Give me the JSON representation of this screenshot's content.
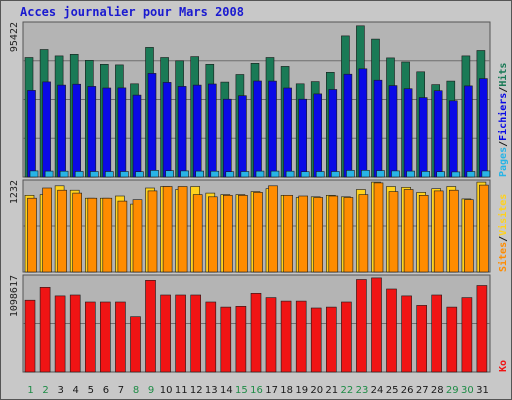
{
  "title": "Acces journalier pour Mars 2008",
  "colors": {
    "background": "#c8c8c8",
    "plot_background": "#b4b4b4",
    "grid": "#6e6e6e",
    "hits": "#1a7a56",
    "files": "#0a0ae6",
    "pages": "#28b4e6",
    "visits": "#ffd21e",
    "sites": "#ff8c00",
    "kbytes": "#f01414",
    "weekday_label": "#1a1a1a",
    "weekend_label": "#1e8c46"
  },
  "chart_data": [
    {
      "type": "bar",
      "panel": "top",
      "max_label": "95422",
      "ylim": [
        0,
        95422
      ],
      "legend": [
        {
          "name": "Pages",
          "color_key": "pages"
        },
        {
          "name": "Fichiers",
          "color_key": "files"
        },
        {
          "name": "Hits",
          "color_key": "hits"
        }
      ],
      "categories": [
        "1",
        "2",
        "3",
        "4",
        "5",
        "6",
        "7",
        "8",
        "9",
        "10",
        "11",
        "12",
        "13",
        "14",
        "15",
        "16",
        "17",
        "18",
        "19",
        "20",
        "21",
        "22",
        "23",
        "24",
        "25",
        "26",
        "27",
        "28",
        "29",
        "30",
        "31"
      ],
      "series": [
        {
          "name": "Hits",
          "color_key": "hits",
          "values": [
            74500,
            79500,
            75500,
            76500,
            72800,
            70300,
            69900,
            58100,
            80800,
            74500,
            72500,
            75100,
            70300,
            59200,
            63900,
            70900,
            74500,
            69000,
            58100,
            59500,
            65300,
            88000,
            94300,
            86000,
            74300,
            71700,
            65600,
            57600,
            59800,
            75500,
            78900
          ]
        },
        {
          "name": "Fichiers",
          "color_key": "files",
          "values": [
            54000,
            59300,
            57300,
            57900,
            56500,
            55500,
            55600,
            51100,
            64600,
            59000,
            56500,
            57300,
            58000,
            48500,
            50700,
            59900,
            59800,
            55500,
            48500,
            51800,
            54600,
            64100,
            67500,
            60400,
            57000,
            55100,
            49500,
            53800,
            47500,
            56800,
            61400
          ]
        },
        {
          "name": "Pages",
          "color_key": "pages",
          "values": [
            3800,
            3700,
            3600,
            3500,
            3400,
            3400,
            3400,
            3300,
            4100,
            3900,
            3800,
            3700,
            3600,
            3300,
            3400,
            3700,
            3700,
            3600,
            3300,
            3400,
            3400,
            4100,
            4200,
            4000,
            3800,
            3700,
            3500,
            3300,
            3200,
            3400,
            3800
          ]
        }
      ]
    },
    {
      "type": "bar",
      "panel": "middle",
      "max_label": "1232",
      "ylim": [
        0,
        1232
      ],
      "legend": [
        {
          "name": "Sites",
          "color_key": "sites"
        },
        {
          "name": "Visites",
          "color_key": "visits"
        }
      ],
      "categories": [
        "1",
        "2",
        "3",
        "4",
        "5",
        "6",
        "7",
        "8",
        "9",
        "10",
        "11",
        "12",
        "13",
        "14",
        "15",
        "16",
        "17",
        "18",
        "19",
        "20",
        "21",
        "22",
        "23",
        "24",
        "25",
        "26",
        "27",
        "28",
        "29",
        "30",
        "31"
      ],
      "series": [
        {
          "name": "Visites",
          "color_key": "visits",
          "values": [
            1050,
            1060,
            1180,
            1120,
            1010,
            1010,
            1040,
            930,
            1150,
            1170,
            1130,
            1170,
            1080,
            1060,
            1060,
            1100,
            1140,
            1050,
            1020,
            1030,
            1050,
            1030,
            1130,
            1230,
            1170,
            1160,
            1090,
            1140,
            1170,
            1000,
            1230
          ]
        },
        {
          "name": "Sites",
          "color_key": "sites",
          "values": [
            1010,
            1150,
            1120,
            1080,
            1010,
            1010,
            970,
            990,
            1110,
            1170,
            1170,
            1060,
            1030,
            1050,
            1050,
            1090,
            1180,
            1050,
            1040,
            1020,
            1040,
            1020,
            1060,
            1220,
            1100,
            1130,
            1050,
            1110,
            1120,
            990,
            1190
          ]
        }
      ]
    },
    {
      "type": "bar",
      "panel": "bottom",
      "max_label": "1098617",
      "ylim": [
        0,
        1098617
      ],
      "legend": [
        {
          "name": "Ko",
          "color_key": "kbytes"
        }
      ],
      "categories": [
        "1",
        "2",
        "3",
        "4",
        "5",
        "6",
        "7",
        "8",
        "9",
        "10",
        "11",
        "12",
        "13",
        "14",
        "15",
        "16",
        "17",
        "18",
        "19",
        "20",
        "21",
        "22",
        "23",
        "24",
        "25",
        "26",
        "27",
        "28",
        "29",
        "30",
        "31"
      ],
      "series": [
        {
          "name": "Ko",
          "color_key": "kbytes",
          "values": [
            830000,
            980000,
            880000,
            890000,
            810000,
            810000,
            810000,
            640000,
            1060000,
            890000,
            890000,
            890000,
            810000,
            750000,
            760000,
            910000,
            860000,
            820000,
            820000,
            740000,
            750000,
            810000,
            1070000,
            1088000,
            960000,
            880000,
            770000,
            890000,
            750000,
            860000,
            1000000
          ]
        }
      ]
    }
  ],
  "x_labels": [
    {
      "label": "1",
      "weekend": true
    },
    {
      "label": "2",
      "weekend": true
    },
    {
      "label": "3",
      "weekend": false
    },
    {
      "label": "4",
      "weekend": false
    },
    {
      "label": "5",
      "weekend": false
    },
    {
      "label": "6",
      "weekend": false
    },
    {
      "label": "7",
      "weekend": false
    },
    {
      "label": "8",
      "weekend": true
    },
    {
      "label": "9",
      "weekend": true
    },
    {
      "label": "10",
      "weekend": false
    },
    {
      "label": "11",
      "weekend": false
    },
    {
      "label": "12",
      "weekend": false
    },
    {
      "label": "13",
      "weekend": false
    },
    {
      "label": "14",
      "weekend": false
    },
    {
      "label": "15",
      "weekend": true
    },
    {
      "label": "16",
      "weekend": true
    },
    {
      "label": "17",
      "weekend": false
    },
    {
      "label": "18",
      "weekend": false
    },
    {
      "label": "19",
      "weekend": false
    },
    {
      "label": "20",
      "weekend": false
    },
    {
      "label": "21",
      "weekend": false
    },
    {
      "label": "22",
      "weekend": true
    },
    {
      "label": "23",
      "weekend": true
    },
    {
      "label": "24",
      "weekend": false
    },
    {
      "label": "25",
      "weekend": false
    },
    {
      "label": "26",
      "weekend": false
    },
    {
      "label": "27",
      "weekend": false
    },
    {
      "label": "28",
      "weekend": false
    },
    {
      "label": "29",
      "weekend": true
    },
    {
      "label": "30",
      "weekend": true
    },
    {
      "label": "31",
      "weekend": false
    }
  ]
}
